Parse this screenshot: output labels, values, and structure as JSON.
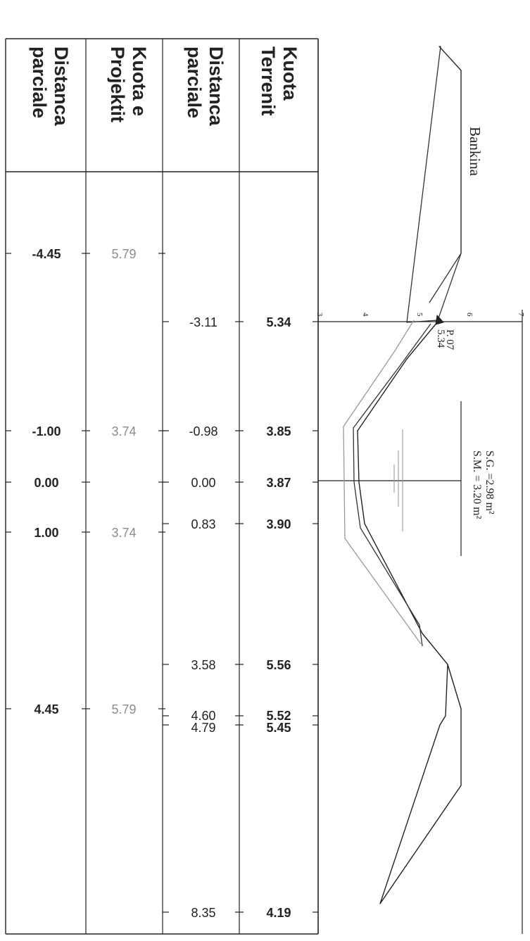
{
  "table": {
    "headers": {
      "kuota_terrenit": [
        "Kuota",
        "Terrenit"
      ],
      "distanca_terrenit": [
        "Distanca",
        "parciale"
      ],
      "kuota_projektit": [
        "Kuota e",
        "Projektit"
      ],
      "distanca_projektit": [
        "Distanca",
        "parciale"
      ]
    },
    "terrain_rows": [
      {
        "distance": "-3.11",
        "elevation": "5.34"
      },
      {
        "distance": "-0.98",
        "elevation": "3.85"
      },
      {
        "distance": "0.00",
        "elevation": "3.87"
      },
      {
        "distance": "0.83",
        "elevation": "3.90"
      },
      {
        "distance": "3.58",
        "elevation": "5.56"
      },
      {
        "distance": "4.60",
        "elevation": "5.52"
      },
      {
        "distance": "4.79",
        "elevation": "5.45"
      },
      {
        "distance": "8.35",
        "elevation": "4.19"
      }
    ],
    "project_rows": [
      {
        "distance": "-4.45",
        "elevation": "5.79"
      },
      {
        "distance": "-1.00",
        "elevation": "3.74"
      },
      {
        "distance": "0.00",
        "elevation": ""
      },
      {
        "distance": "1.00",
        "elevation": "3.74"
      },
      {
        "distance": "4.45",
        "elevation": "5.79"
      }
    ]
  },
  "drawing": {
    "bankina_label": "Bankina",
    "scale_ticks": [
      "3",
      "4",
      "5",
      "6",
      "7"
    ],
    "point_label": [
      "P. 07",
      "5.34"
    ],
    "area_labels": [
      "S.G. =2.98 m²",
      "S.M. = 3.20 m²"
    ]
  },
  "colors": {
    "ink": "#222222",
    "project_text": "#8c8c8c",
    "grey_line": "#9a9a9a"
  }
}
